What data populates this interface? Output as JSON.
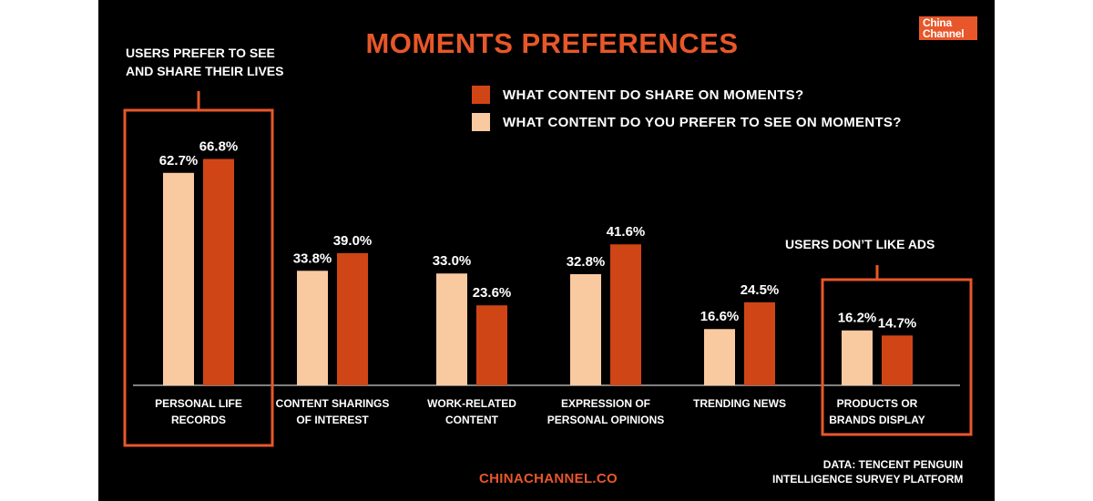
{
  "colors": {
    "background": "#000000",
    "accent": "#e8572a",
    "share_bar": "#d04516",
    "see_bar": "#f9c9a0",
    "text": "#ffffff"
  },
  "logo": {
    "line1": "China",
    "line2": "Channel"
  },
  "annotations": {
    "callout_left_line1": "USERS PREFER TO SEE",
    "callout_left_line2": "AND SHARE THEIR LIVES",
    "callout_right": "USERS DON’T LIKE ADS"
  },
  "source": {
    "line1": "DATA:  TENCENT PENGUIN",
    "line2": "INTELLIGENCE SURVEY PLATFORM"
  },
  "footer": "CHINACHANNEL.CO",
  "chart_data": {
    "type": "bar",
    "title": "MOMENTS PREFERENCES",
    "categories": [
      [
        "PERSONAL LIFE",
        "RECORDS"
      ],
      [
        "CONTENT SHARINGS",
        "OF INTEREST"
      ],
      [
        "WORK-RELATED",
        "CONTENT"
      ],
      [
        "EXPRESSION OF",
        "PERSONAL OPINIONS"
      ],
      [
        "TRENDING NEWS"
      ],
      [
        "PRODUCTS OR",
        "BRANDS DISPLAY"
      ]
    ],
    "series": [
      {
        "name": "WHAT CONTENT DO YOU PREFER TO SEE ON MOMENTS?",
        "values": [
          62.7,
          33.8,
          33.0,
          32.8,
          16.6,
          16.2
        ],
        "labels": [
          "62.7%",
          "33.8%",
          "33.0%",
          "32.8%",
          "16.6%",
          "16.2%"
        ],
        "color": "#f9c9a0"
      },
      {
        "name": "WHAT CONTENT DO SHARE ON MOMENTS?",
        "values": [
          66.8,
          39.0,
          23.6,
          41.6,
          24.5,
          14.7
        ],
        "labels": [
          "66.8%",
          "39.0%",
          "23.6%",
          "41.6%",
          "24.5%",
          "14.7%"
        ],
        "color": "#d04516"
      }
    ],
    "legend_order": [
      1,
      0
    ],
    "legend_position": "top-right",
    "highlighted_categories": [
      0,
      5
    ],
    "ylim": [
      0,
      70
    ],
    "grid": false,
    "xlabel": "",
    "ylabel": ""
  }
}
